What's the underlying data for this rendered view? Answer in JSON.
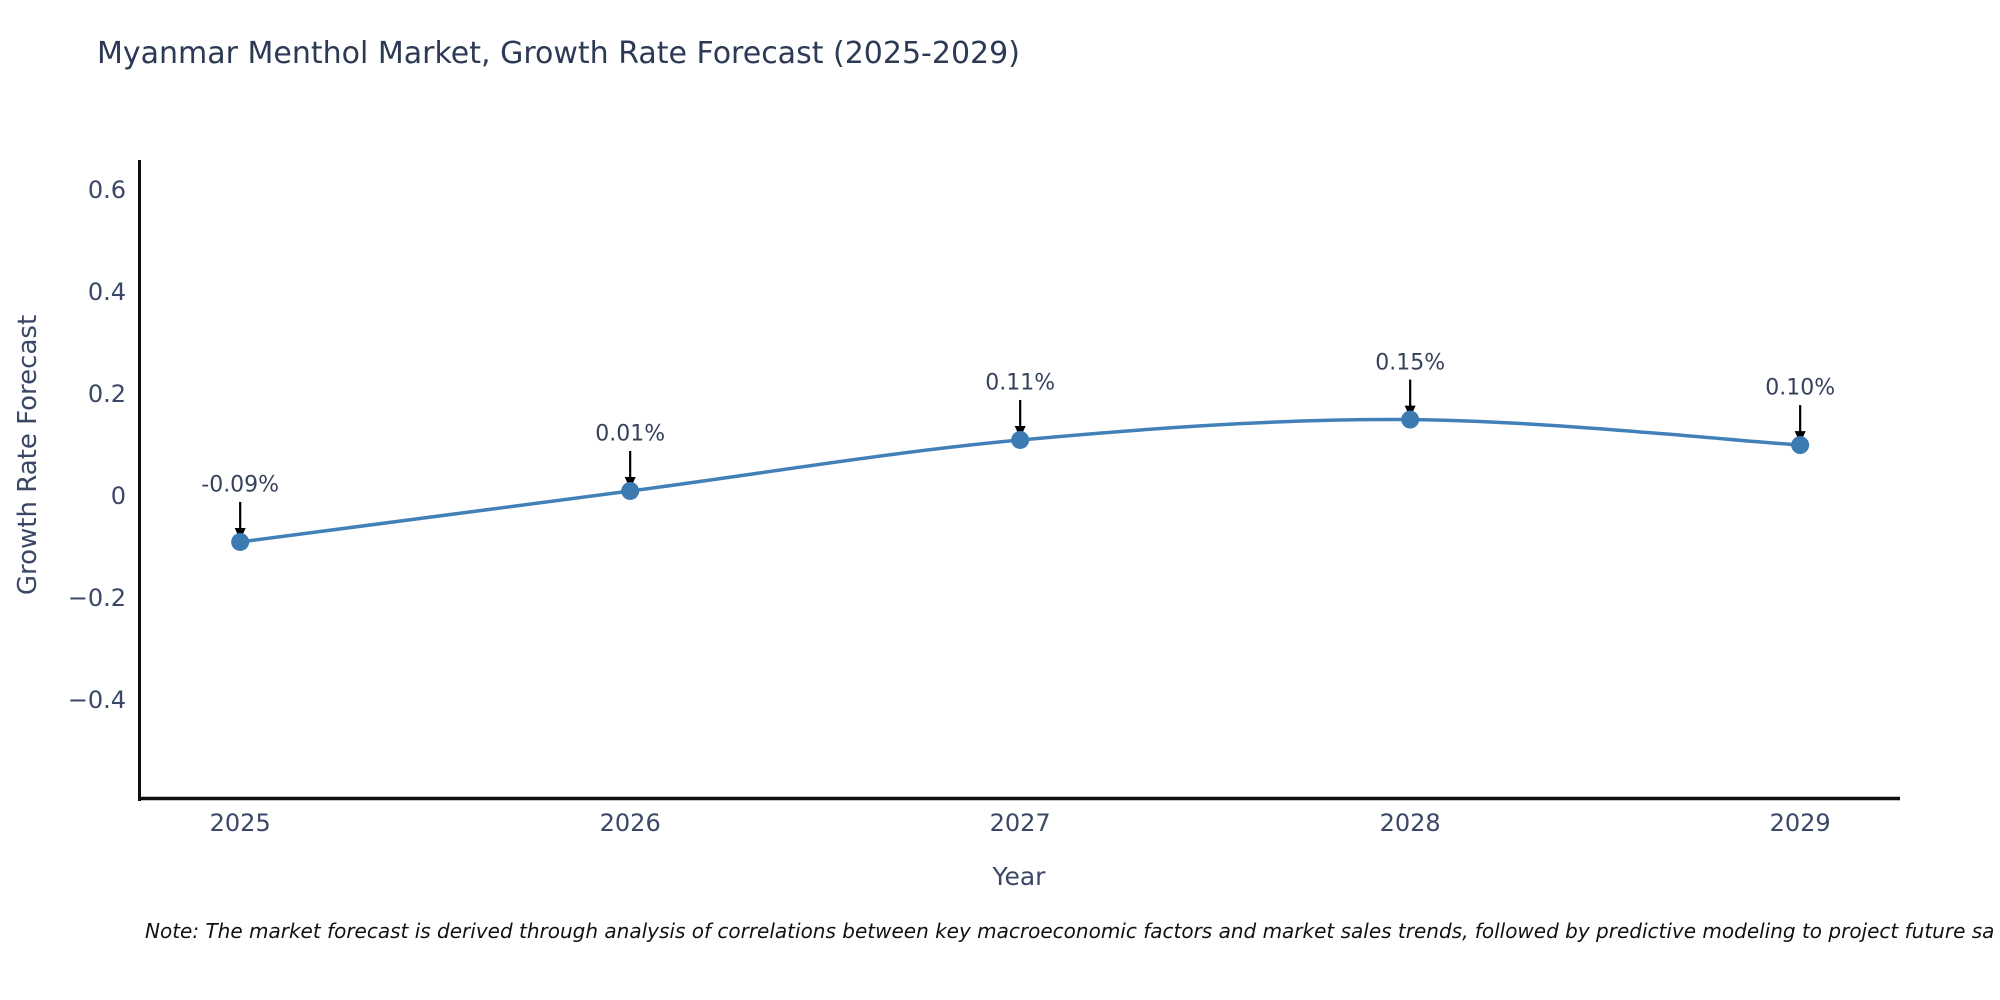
{
  "page": {
    "background": "#ffffff"
  },
  "chart_data": {
    "type": "line",
    "title": "Myanmar Menthol Market, Growth Rate Forecast (2025-2029)",
    "xlabel": "Year",
    "ylabel": "Growth Rate Forecast",
    "x": [
      2025,
      2026,
      2027,
      2028,
      2029
    ],
    "y": [
      -0.09,
      0.01,
      0.11,
      0.15,
      0.1
    ],
    "point_labels": [
      "-0.09%",
      "0.01%",
      "0.11%",
      "0.15%",
      "0.10%"
    ],
    "x_tick_labels": [
      "2025",
      "2026",
      "2027",
      "2028",
      "2029"
    ],
    "y_ticks": [
      0.6,
      0.4,
      0.2,
      0,
      -0.2,
      -0.4
    ],
    "y_tick_labels": [
      "0.6",
      "0.4",
      "0.2",
      "0",
      "−0.2",
      "−0.4"
    ],
    "xlim": [
      2024.738,
      2029.256
    ],
    "ylim": [
      -0.596,
      0.659
    ],
    "grid": false,
    "legend": false,
    "annotation_style": "black-arrow-down-to-point",
    "line_color": "#4181b8",
    "marker_color": "#3c7ab2",
    "axis_color": "#0f0f0f",
    "arrow_color": "#000000",
    "tick_color": "#3a4766",
    "title_color": "#2c3a55"
  },
  "note": "Note: The market forecast is derived through analysis of correlations between key macroeconomic factors and market sales trends, followed by predictive modeling to project future sa"
}
